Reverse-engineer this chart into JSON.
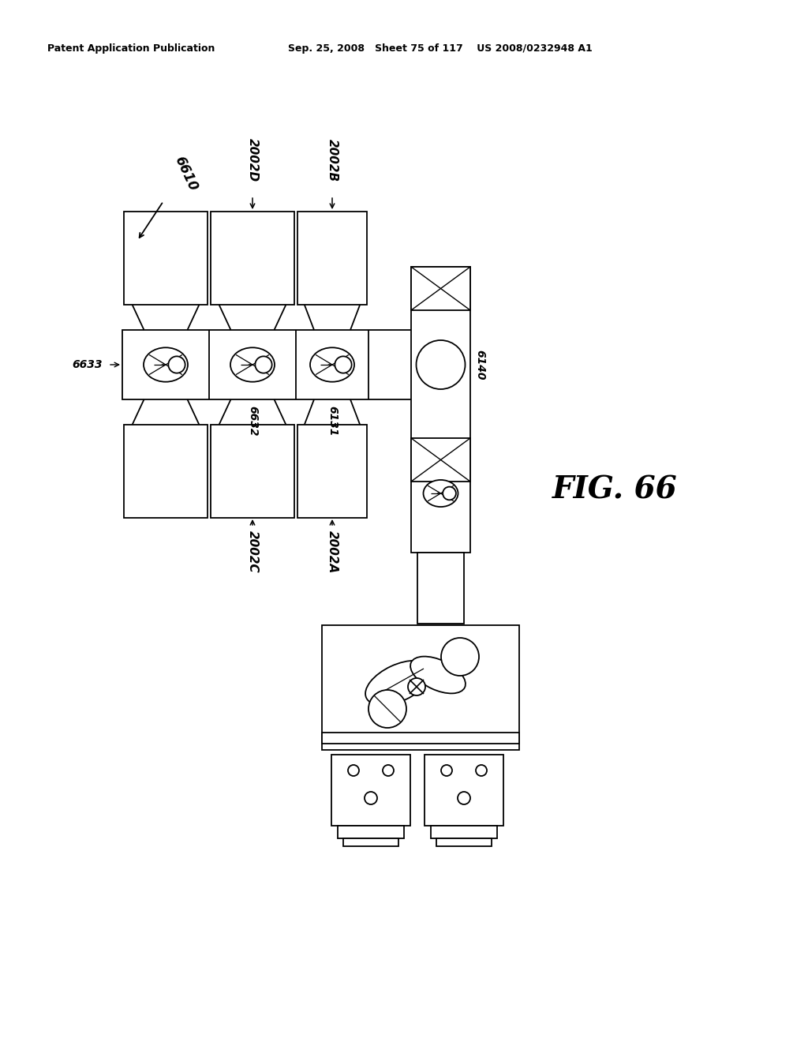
{
  "title_left": "Patent Application Publication",
  "title_right": "Sep. 25, 2008   Sheet 75 of 117    US 2008/0232948 A1",
  "fig_label": "FIG. 66",
  "ref_6610": "6610",
  "ref_2002D": "2002D",
  "ref_2002B": "2002B",
  "ref_2002C": "2002C",
  "ref_2002A": "2002A",
  "ref_6633": "6633",
  "ref_6632": "6632",
  "ref_6131": "6131",
  "ref_6140": "6140",
  "bg_color": "#ffffff",
  "line_color": "#000000"
}
